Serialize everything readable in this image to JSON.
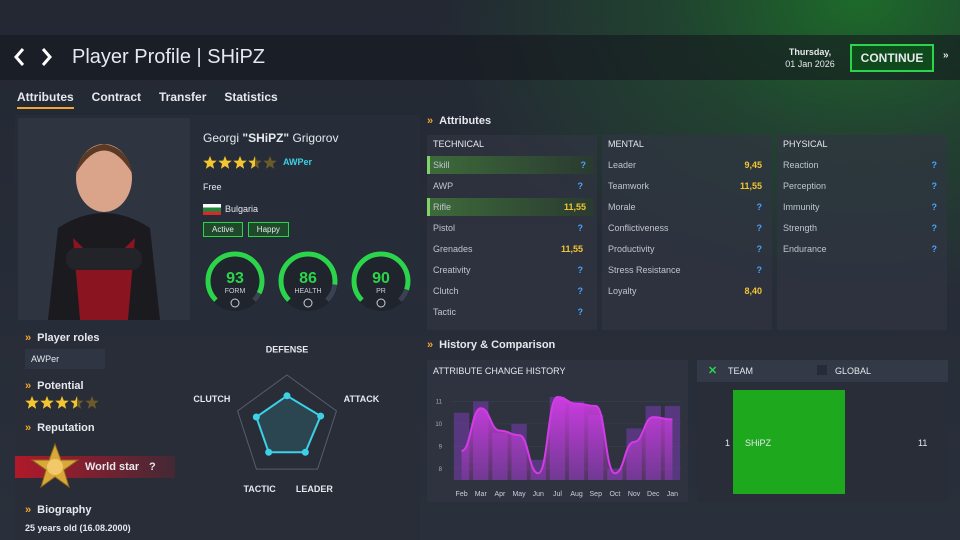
{
  "header": {
    "title": "Player Profile | SHiPZ",
    "day": "Thursday,",
    "date": "01 Jan 2026",
    "continue": "CONTINUE"
  },
  "tabs": [
    "Attributes",
    "Contract",
    "Transfer",
    "Statistics"
  ],
  "player": {
    "first_name": "Georgi",
    "nickname": "\"SHiPZ\"",
    "last_name": "Grigorov",
    "rating": 3.5,
    "rating_max": 5,
    "role": "AWPer",
    "status": "Free",
    "country": "Bulgaria",
    "tags": [
      "Active",
      "Happy"
    ],
    "gauges": [
      {
        "value": 93,
        "label": "FORM"
      },
      {
        "value": 86,
        "label": "HEALTH"
      },
      {
        "value": 90,
        "label": "PR"
      }
    ],
    "gauge_max": 100
  },
  "sections": {
    "roles_title": "Player roles",
    "roles": [
      "AWPer"
    ],
    "potential_title": "Potential",
    "potential": 3.5,
    "reputation_title": "Reputation",
    "reputation": "World star",
    "reputation_help": "?",
    "biography_title": "Biography",
    "biography": "25 years old (16.08.2000)"
  },
  "radar": {
    "axes": [
      "DEFENSE",
      "ATTACK",
      "LEADER",
      "TACTIC",
      "CLUTCH"
    ],
    "values": [
      60,
      68,
      60,
      60,
      62
    ],
    "max": 100
  },
  "attributes": {
    "title": "Attributes",
    "columns": [
      {
        "name": "TECHNICAL",
        "rows": [
          {
            "name": "Skill",
            "value": "?",
            "highlight": true
          },
          {
            "name": "AWP",
            "value": "?"
          },
          {
            "name": "Rifle",
            "value": "11,55",
            "highlight": true
          },
          {
            "name": "Pistol",
            "value": "?"
          },
          {
            "name": "Grenades",
            "value": "11,55"
          },
          {
            "name": "Creativity",
            "value": "?"
          },
          {
            "name": "Clutch",
            "value": "?"
          },
          {
            "name": "Tactic",
            "value": "?"
          }
        ]
      },
      {
        "name": "MENTAL",
        "rows": [
          {
            "name": "Leader",
            "value": "9,45"
          },
          {
            "name": "Teamwork",
            "value": "11,55"
          },
          {
            "name": "Morale",
            "value": "?"
          },
          {
            "name": "Conflictiveness",
            "value": "?"
          },
          {
            "name": "Productivity",
            "value": "?"
          },
          {
            "name": "Stress Resistance",
            "value": "?"
          },
          {
            "name": "Loyalty",
            "value": "8,40"
          }
        ]
      },
      {
        "name": "PHYSICAL",
        "rows": [
          {
            "name": "Reaction",
            "value": "?"
          },
          {
            "name": "Perception",
            "value": "?"
          },
          {
            "name": "Immunity",
            "value": "?"
          },
          {
            "name": "Strength",
            "value": "?"
          },
          {
            "name": "Endurance",
            "value": "?"
          }
        ]
      }
    ]
  },
  "history": {
    "title": "History & Comparison",
    "chart_title": "ATTRIBUTE CHANGE HISTORY",
    "chart_data": {
      "type": "area",
      "categories": [
        "Feb",
        "Mar",
        "Apr",
        "May",
        "Jun",
        "Jul",
        "Aug",
        "Sep",
        "Oct",
        "Nov",
        "Dec",
        "Jan"
      ],
      "series": [
        {
          "type": "bar",
          "color": "#6a3a9a",
          "values": [
            10.5,
            11.0,
            9.6,
            10.0,
            8.4,
            11.2,
            11.0,
            10.4,
            8.0,
            9.8,
            10.8,
            10.8
          ]
        },
        {
          "type": "area",
          "color": "#d23ce6",
          "values": [
            8.8,
            10.7,
            9.7,
            9.5,
            7.8,
            11.2,
            10.9,
            10.8,
            7.8,
            9.2,
            10.3,
            10.2
          ]
        }
      ],
      "ylim": [
        7.5,
        11.6
      ],
      "yticks": [
        8,
        9,
        10,
        11
      ]
    }
  },
  "comparison": {
    "legend": [
      "TEAM",
      "GLOBAL"
    ],
    "player": "SHiPZ",
    "left": "1",
    "right": "11"
  }
}
